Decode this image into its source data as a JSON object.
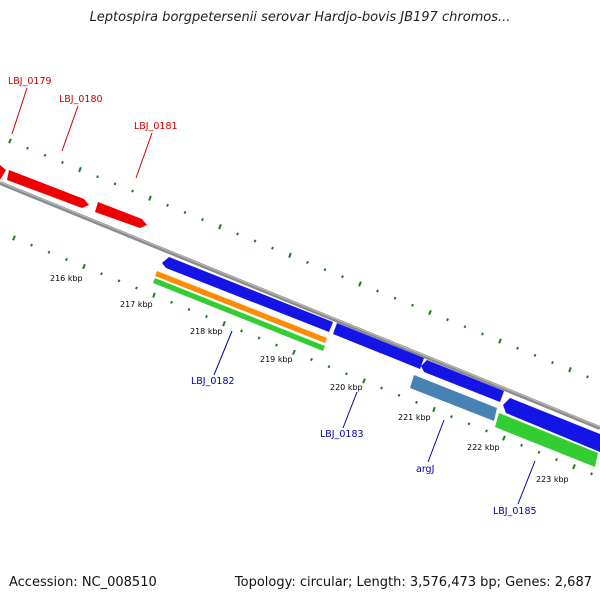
{
  "title": "Leptospira borgpetersenii serovar Hardjo-bovis JB197 chromos...",
  "footer": {
    "accession": "Accession: NC_008510",
    "stats": "Topology: circular; Length: 3,576,473 bp; Genes: 2,687"
  },
  "colors": {
    "backbone": "#8c8c8c",
    "tick": "#1e7d1e",
    "red_gene": "#ee0000",
    "blue_gene": "#1414e6",
    "steel_gene": "#4682b4",
    "orange_gene": "#ff8c00",
    "green_gene": "#32cd32",
    "red_label": "#cc0000",
    "blue_label": "#0000aa"
  },
  "ticks": {
    "labels": [
      "216 kbp",
      "217 kbp",
      "218 kbp",
      "219 kbp",
      "220 kbp",
      "221 kbp",
      "222 kbp",
      "223 kbp"
    ]
  },
  "genes": {
    "LBJ_0179": "LBJ_0179",
    "LBJ_0180": "LBJ_0180",
    "LBJ_0181": "LBJ_0181",
    "LBJ_0182": "LBJ_0182",
    "LBJ_0183": "LBJ_0183",
    "argJ": "argJ",
    "LBJ_0185": "LBJ_0185"
  }
}
